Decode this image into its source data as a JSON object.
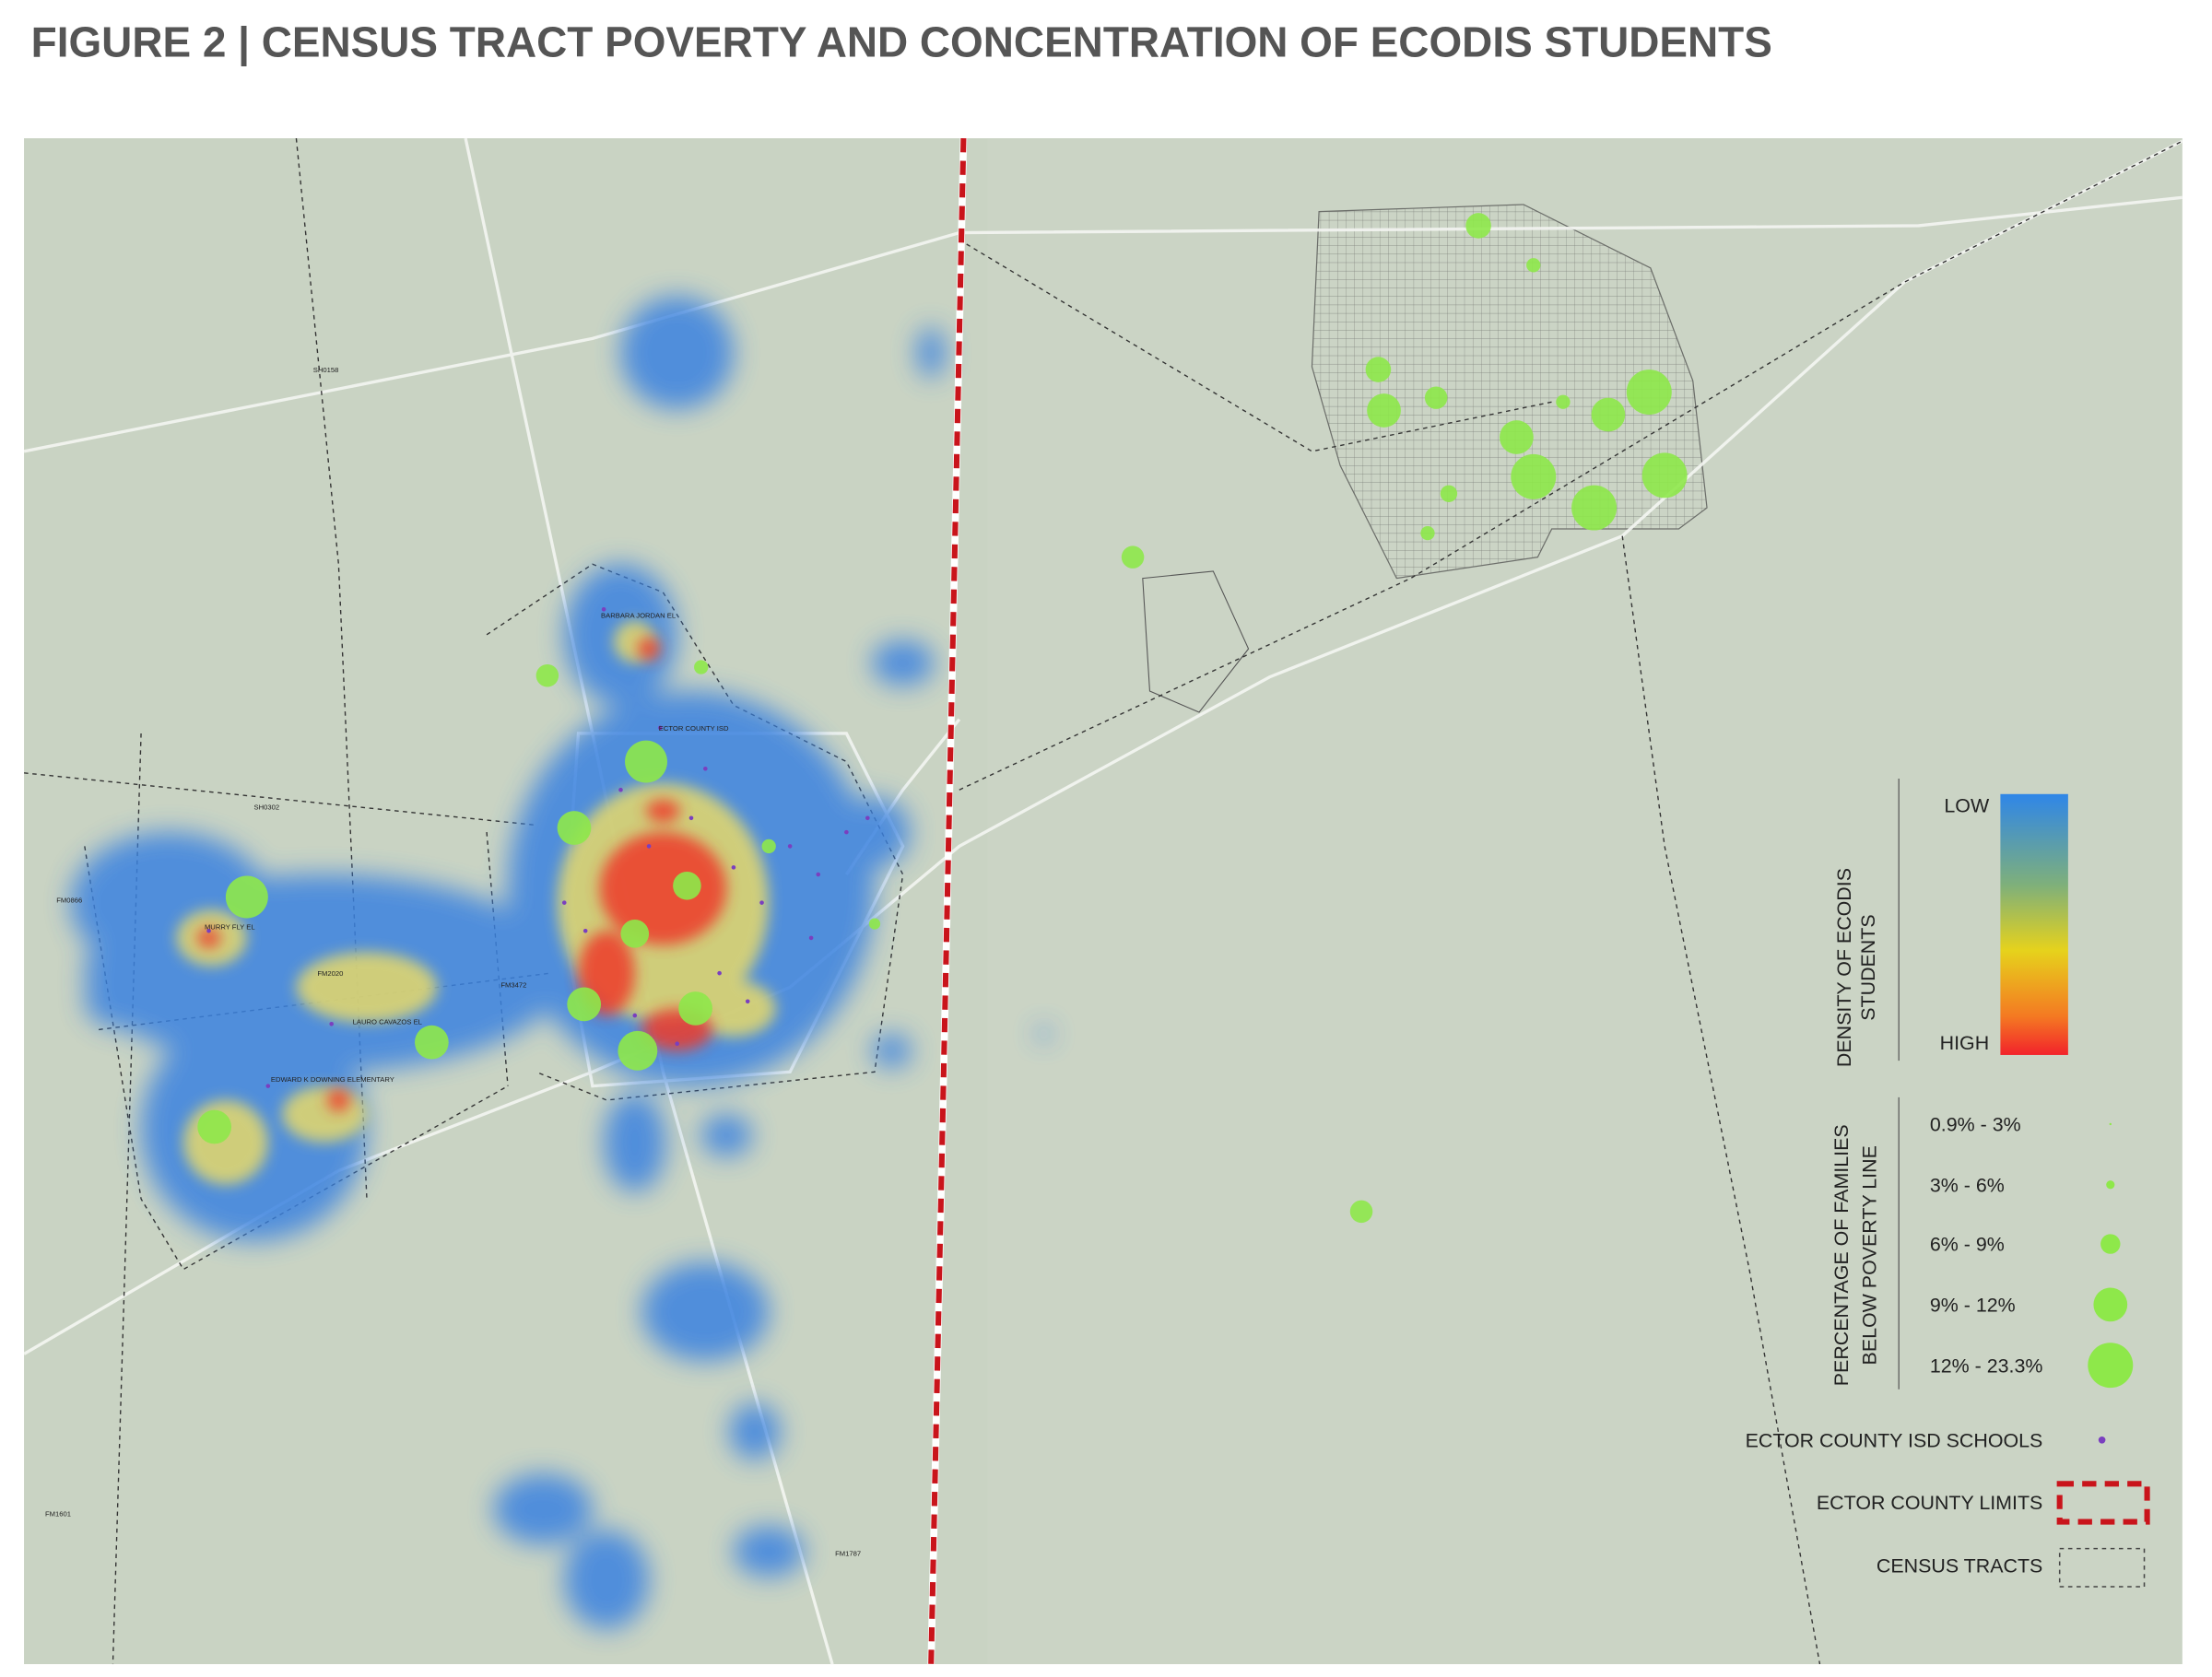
{
  "title": "FIGURE 2 |  CENSUS TRACT POVERTY AND CONCENTRATION OF ECODIS STUDENTS",
  "map_labels": [
    "SH0158",
    "SH0302",
    "FM0866",
    "FM2020",
    "FM3472",
    "FM1787",
    "FM1601",
    "MURRY FLY EL",
    "LAURO CAVAZOS EL",
    "EDWARD K DOWNING ELEMENTARY",
    "BARBARA JORDAN EL",
    "ECTOR COUNTY ISD"
  ],
  "legend": {
    "density": {
      "title": "DENSITY OF ECODIS STUDENTS",
      "low": "LOW",
      "high": "HIGH"
    },
    "poverty": {
      "title": "PERCENTAGE OF FAMILIES BELOW POVERTY LINE",
      "classes": [
        "0.9% - 3%",
        "3% - 6%",
        "6% - 9%",
        "9% - 12%",
        "12% - 23.3%"
      ]
    },
    "schools": "ECTOR COUNTY ISD SCHOOLS",
    "county": "ECTOR COUNTY LIMITS",
    "tracts": "CENSUS TRACTS"
  }
}
